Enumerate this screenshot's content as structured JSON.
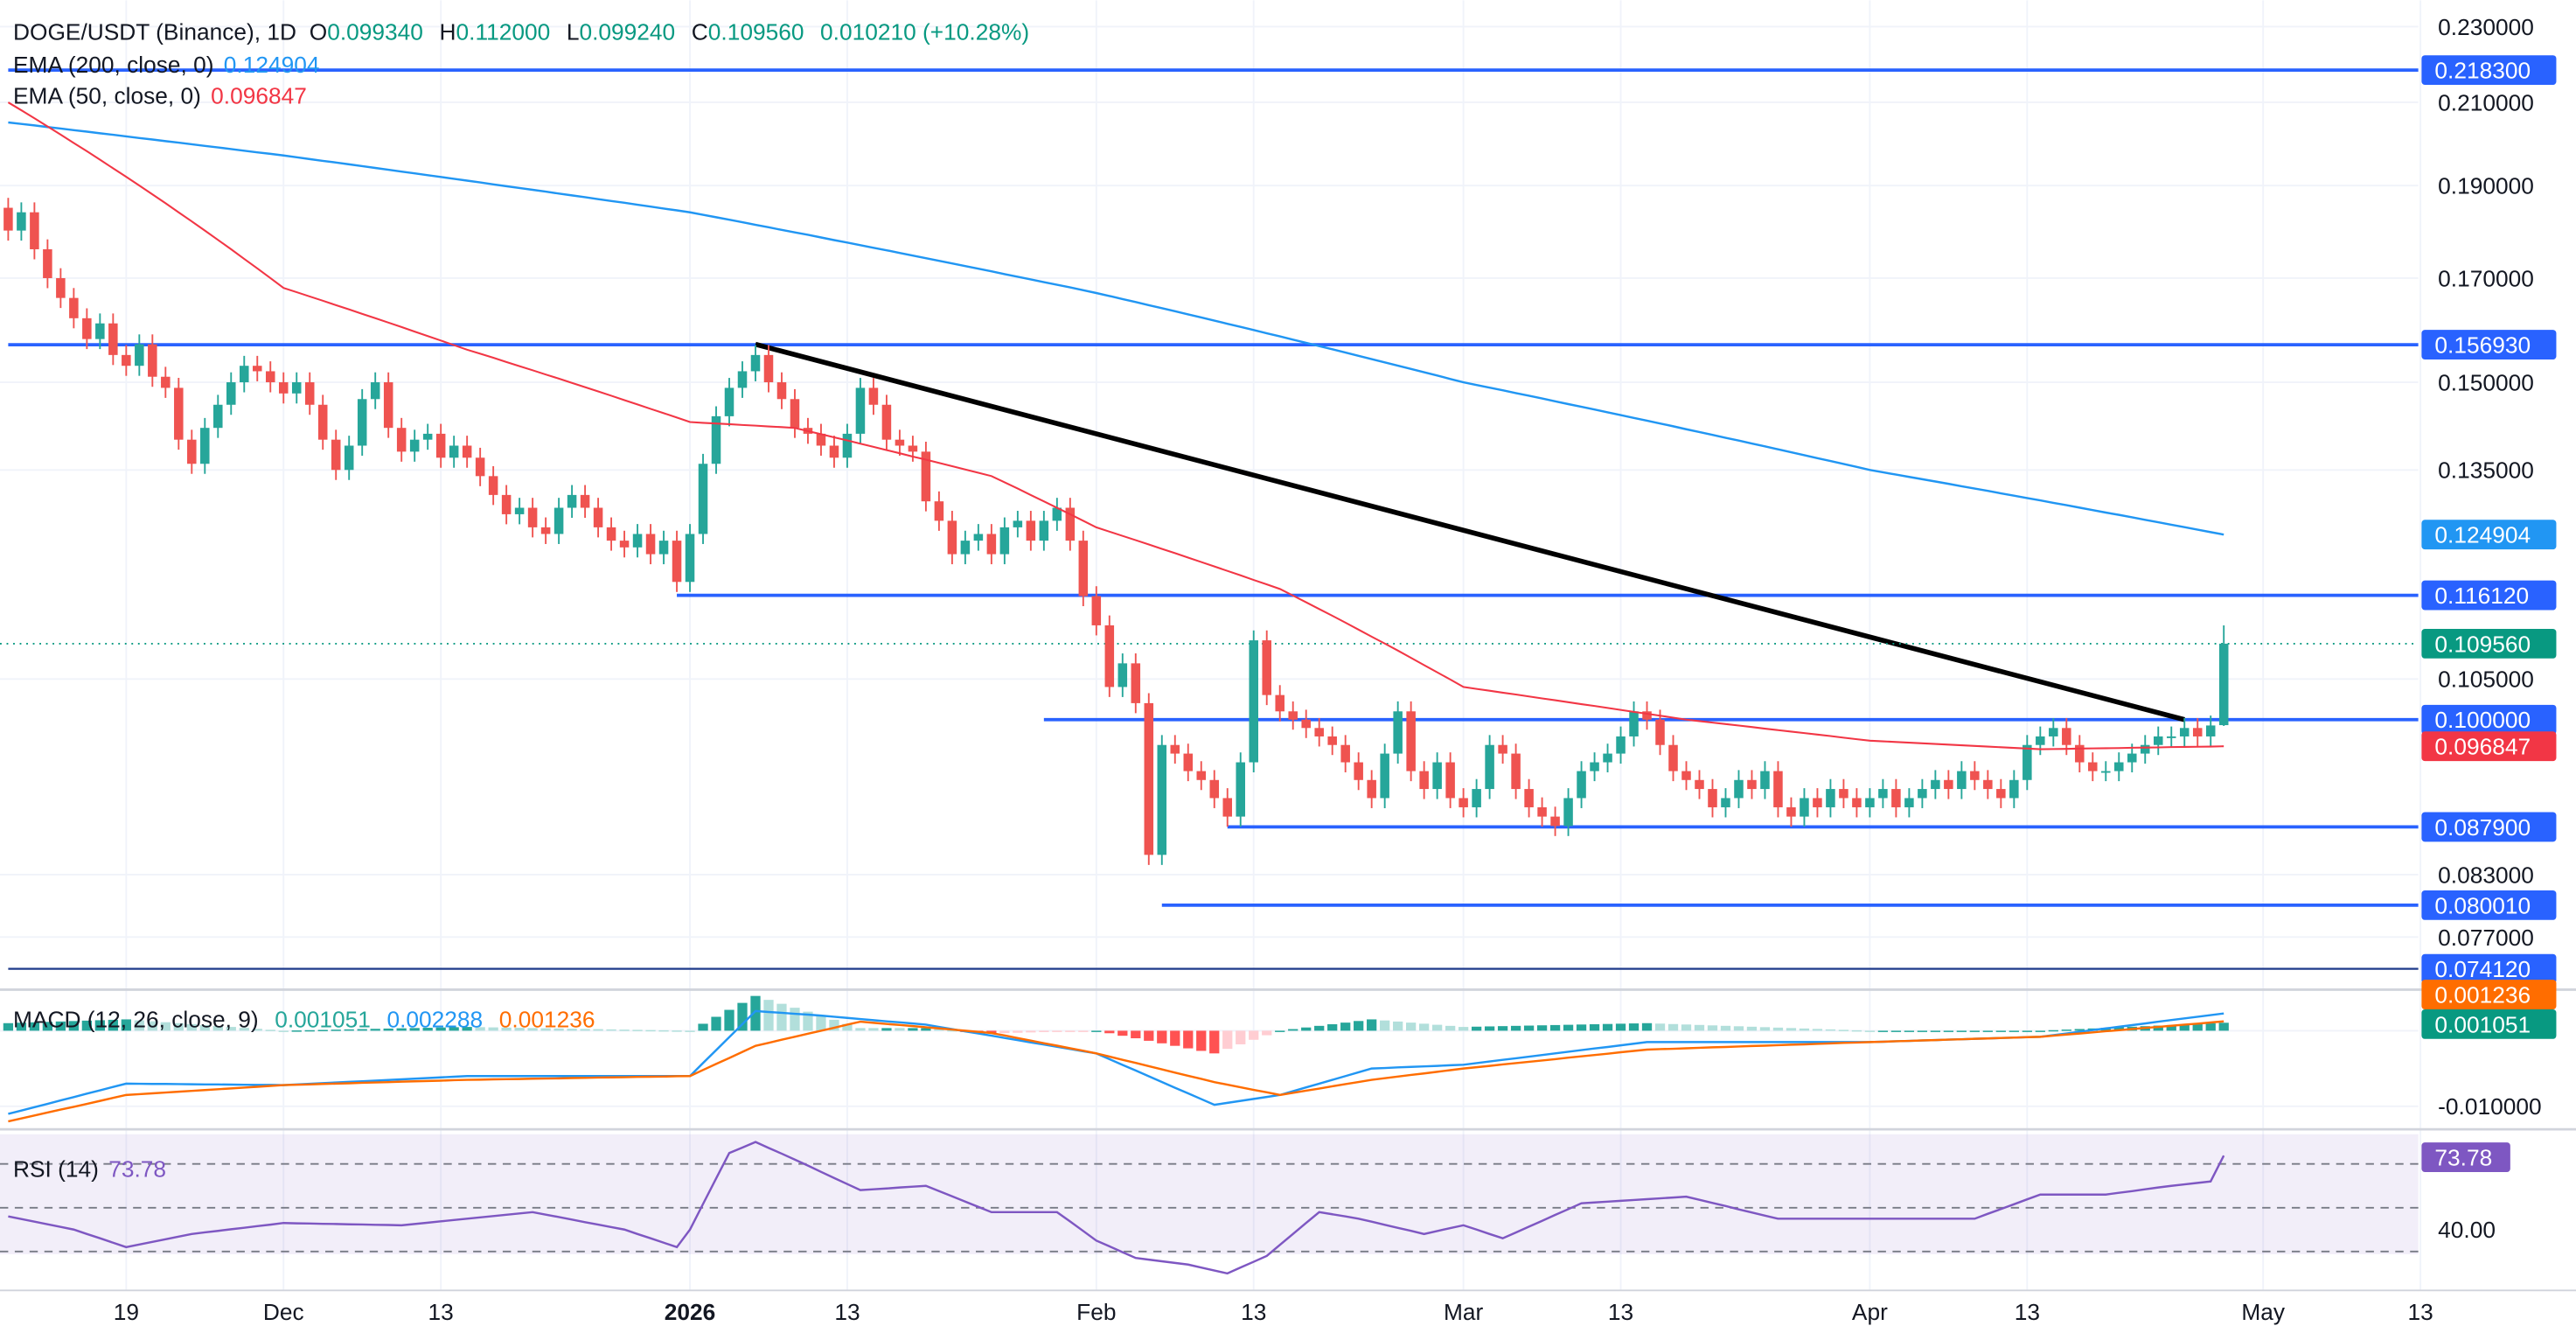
{
  "header": {
    "symbol": "DOGE/USDT (Binance), 1D",
    "o_label": "O",
    "o": "0.099340",
    "h_label": "H",
    "h": "0.112000",
    "l_label": "L",
    "l": "0.099240",
    "c_label": "C",
    "c": "0.109560",
    "change": "0.010210 (+10.28%)",
    "ema200_label": "EMA (200, close, 0)",
    "ema200_value": "0.124904",
    "ema50_label": "EMA (50, close, 0)",
    "ema50_value": "0.096847",
    "macd_label": "MACD (12, 26, close, 9)",
    "macd_hist": "0.001051",
    "macd_line": "0.002288",
    "macd_signal": "0.001236",
    "rsi_label": "RSI (14)",
    "rsi_value": "73.78"
  },
  "colors": {
    "up": "#26a69a",
    "down": "#ef5350",
    "level": "#2962ff",
    "ema200": "#2196f3",
    "ema50": "#f23645",
    "macd": "#2196f3",
    "signal": "#ff6d00",
    "rsi": "#7e57c2",
    "price_badge": "#089981"
  },
  "chart_data": {
    "type": "candlestick",
    "symbol": "DOGE/USDT",
    "interval": "1D",
    "first_day": "Nov 10",
    "scale": "log",
    "ylim": [
      0.074,
      0.232
    ],
    "price_ticks": [
      "0.230000",
      "0.210000",
      "0.190000",
      "0.170000",
      "0.150000",
      "0.135000",
      "0.105000",
      "0.083000",
      "0.077000"
    ],
    "price_tick_values": [
      0.23,
      0.21,
      0.19,
      0.17,
      0.15,
      0.135,
      0.105,
      0.083,
      0.077
    ],
    "x_ticks": [
      {
        "label": "19",
        "day": 9
      },
      {
        "label": "Dec",
        "day": 21
      },
      {
        "label": "13",
        "day": 33
      },
      {
        "label": "2026",
        "day": 52,
        "bold": true
      },
      {
        "label": "13",
        "day": 64
      },
      {
        "label": "Feb",
        "day": 83
      },
      {
        "label": "13",
        "day": 95
      },
      {
        "label": "Mar",
        "day": 111
      },
      {
        "label": "13",
        "day": 123
      },
      {
        "label": "Apr",
        "day": 142
      },
      {
        "label": "13",
        "day": 154
      },
      {
        "label": "May",
        "day": 172
      },
      {
        "label": "13",
        "day": 184
      }
    ],
    "closes": [
      0.18,
      0.184,
      0.176,
      0.17,
      0.166,
      0.162,
      0.158,
      0.161,
      0.155,
      0.153,
      0.157,
      0.151,
      0.149,
      0.14,
      0.136,
      0.142,
      0.146,
      0.15,
      0.153,
      0.152,
      0.15,
      0.148,
      0.15,
      0.146,
      0.14,
      0.135,
      0.139,
      0.147,
      0.15,
      0.142,
      0.138,
      0.14,
      0.141,
      0.137,
      0.139,
      0.137,
      0.134,
      0.131,
      0.128,
      0.129,
      0.126,
      0.125,
      0.129,
      0.131,
      0.129,
      0.126,
      0.124,
      0.123,
      0.125,
      0.122,
      0.124,
      0.118,
      0.125,
      0.136,
      0.144,
      0.149,
      0.152,
      0.155,
      0.15,
      0.147,
      0.142,
      0.141,
      0.139,
      0.137,
      0.141,
      0.149,
      0.146,
      0.14,
      0.139,
      0.138,
      0.13,
      0.127,
      0.122,
      0.124,
      0.125,
      0.122,
      0.126,
      0.127,
      0.124,
      0.127,
      0.129,
      0.124,
      0.116,
      0.112,
      0.104,
      0.107,
      0.102,
      0.085,
      0.097,
      0.096,
      0.094,
      0.093,
      0.091,
      0.089,
      0.095,
      0.11,
      0.103,
      0.101,
      0.1,
      0.099,
      0.098,
      0.097,
      0.095,
      0.093,
      0.091,
      0.096,
      0.101,
      0.094,
      0.092,
      0.095,
      0.091,
      0.09,
      0.092,
      0.097,
      0.096,
      0.092,
      0.09,
      0.089,
      0.088,
      0.091,
      0.094,
      0.095,
      0.096,
      0.098,
      0.101,
      0.1,
      0.097,
      0.094,
      0.093,
      0.092,
      0.09,
      0.091,
      0.093,
      0.092,
      0.094,
      0.09,
      0.089,
      0.091,
      0.09,
      0.092,
      0.091,
      0.09,
      0.091,
      0.092,
      0.09,
      0.091,
      0.092,
      0.093,
      0.092,
      0.094,
      0.093,
      0.092,
      0.091,
      0.093,
      0.097,
      0.098,
      0.099,
      0.097,
      0.095,
      0.094,
      0.094,
      0.095,
      0.096,
      0.097,
      0.098,
      0.098,
      0.099,
      0.098,
      0.0993,
      0.10956
    ],
    "first_open": 0.185,
    "last_candle": {
      "open": 0.09934,
      "high": 0.112,
      "low": 0.09924,
      "close": 0.10956
    },
    "ema200": [
      [
        0,
        0.205
      ],
      [
        21,
        0.197
      ],
      [
        52,
        0.184
      ],
      [
        83,
        0.167
      ],
      [
        111,
        0.15
      ],
      [
        142,
        0.135
      ],
      [
        169,
        0.124904
      ]
    ],
    "ema50": [
      [
        0,
        0.21
      ],
      [
        10,
        0.19
      ],
      [
        21,
        0.168
      ],
      [
        35,
        0.156
      ],
      [
        52,
        0.143
      ],
      [
        60,
        0.142
      ],
      [
        75,
        0.134
      ],
      [
        83,
        0.126
      ],
      [
        97,
        0.117
      ],
      [
        111,
        0.104
      ],
      [
        128,
        0.1
      ],
      [
        142,
        0.0975
      ],
      [
        155,
        0.0965
      ],
      [
        169,
        0.096847
      ]
    ],
    "levels": [
      {
        "price": 0.2183,
        "label": "0.218300",
        "start_day": 0
      },
      {
        "price": 0.15693,
        "label": "0.156930",
        "start_day": 0
      },
      {
        "price": 0.11612,
        "label": "0.116120",
        "start_day": 51
      },
      {
        "price": 0.1,
        "label": "0.100000",
        "start_day": 79
      },
      {
        "price": 0.0879,
        "label": "0.087900",
        "start_day": 93
      },
      {
        "price": 0.08001,
        "label": "0.080010",
        "start_day": 88
      },
      {
        "price": 0.07412,
        "label": "0.074120",
        "start_day": 0
      }
    ],
    "trendline": [
      [
        57,
        0.157
      ],
      [
        166,
        0.1
      ]
    ],
    "current_price": {
      "price": 0.10956,
      "label": "0.109560"
    },
    "ema200_badge": {
      "price": 0.124904,
      "label": "0.124904"
    },
    "ema50_badge": {
      "price": 0.096847,
      "label": "0.096847"
    },
    "macd": {
      "line": [
        [
          0,
          -0.011
        ],
        [
          9,
          -0.007
        ],
        [
          21,
          -0.0072
        ],
        [
          35,
          -0.006
        ],
        [
          52,
          -0.006
        ],
        [
          57,
          0.0026
        ],
        [
          62,
          0.002
        ],
        [
          70,
          0.0008
        ],
        [
          83,
          -0.003
        ],
        [
          92,
          -0.0098
        ],
        [
          97,
          -0.0085
        ],
        [
          104,
          -0.005
        ],
        [
          111,
          -0.0045
        ],
        [
          125,
          -0.0015
        ],
        [
          142,
          -0.0015
        ],
        [
          155,
          -0.0008
        ],
        [
          169,
          0.002288
        ]
      ],
      "signal": [
        [
          0,
          -0.012
        ],
        [
          9,
          -0.0085
        ],
        [
          21,
          -0.0072
        ],
        [
          35,
          -0.0065
        ],
        [
          52,
          -0.006
        ],
        [
          57,
          -0.002
        ],
        [
          65,
          0.0012
        ],
        [
          75,
          -0.0003
        ],
        [
          83,
          -0.003
        ],
        [
          92,
          -0.0068
        ],
        [
          97,
          -0.0085
        ],
        [
          104,
          -0.0065
        ],
        [
          111,
          -0.005
        ],
        [
          125,
          -0.0025
        ],
        [
          142,
          -0.0015
        ],
        [
          155,
          -0.0008
        ],
        [
          169,
          0.001236
        ]
      ],
      "axis_label": "-0.010000",
      "axis_value": -0.01,
      "signal_badge": "0.001236",
      "hist_badge": "0.001051"
    },
    "rsi": {
      "values": [
        [
          0,
          46
        ],
        [
          5,
          40
        ],
        [
          9,
          32
        ],
        [
          14,
          38
        ],
        [
          21,
          43
        ],
        [
          30,
          42
        ],
        [
          40,
          48
        ],
        [
          47,
          40
        ],
        [
          51,
          32
        ],
        [
          52,
          40
        ],
        [
          55,
          75
        ],
        [
          57,
          80
        ],
        [
          60,
          72
        ],
        [
          65,
          58
        ],
        [
          70,
          60
        ],
        [
          75,
          48
        ],
        [
          80,
          48
        ],
        [
          83,
          35
        ],
        [
          86,
          27
        ],
        [
          90,
          24
        ],
        [
          93,
          20
        ],
        [
          96,
          28
        ],
        [
          100,
          48
        ],
        [
          103,
          45
        ],
        [
          108,
          38
        ],
        [
          111,
          42
        ],
        [
          114,
          36
        ],
        [
          120,
          52
        ],
        [
          128,
          55
        ],
        [
          135,
          45
        ],
        [
          142,
          45
        ],
        [
          150,
          45
        ],
        [
          155,
          56
        ],
        [
          160,
          56
        ],
        [
          165,
          60
        ],
        [
          168,
          62
        ],
        [
          169,
          73.78
        ]
      ],
      "bands": [
        70,
        50,
        30
      ],
      "axis_label": "40.00",
      "axis_value": 40,
      "badge": "73.78"
    }
  }
}
